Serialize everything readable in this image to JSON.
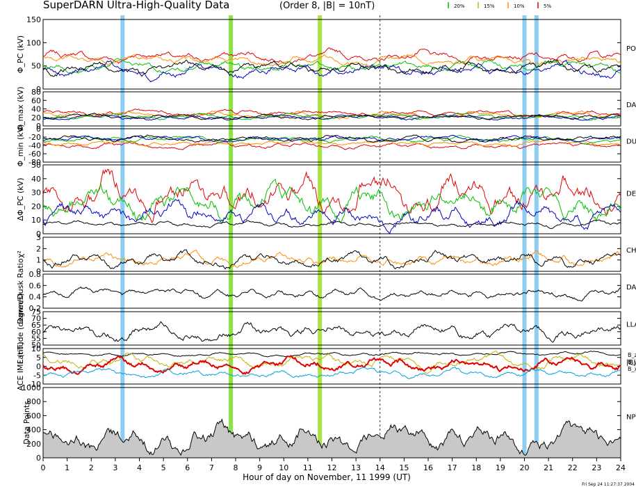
{
  "chart_data": {
    "type": "line",
    "title": "SuperDARN Ultra-High-Quality Data",
    "subtitle": "(Order 8, |B| = 10nT)",
    "legend": [
      {
        "label": "20%",
        "color": "#00c000"
      },
      {
        "label": "15%",
        "color": "#d0b000"
      },
      {
        "label": "10%",
        "color": "#ff8c00"
      },
      {
        "label": "5%",
        "color": "#e00000"
      }
    ],
    "xlabel": "Hour of day on November, 11 1999 (UT)",
    "xlim": [
      0,
      24
    ],
    "xticks": [
      "0",
      "1",
      "2",
      "3",
      "4",
      "5",
      "6",
      "7",
      "8",
      "9",
      "10",
      "11",
      "12",
      "13",
      "14",
      "15",
      "16",
      "17",
      "18",
      "19",
      "20",
      "21",
      "22",
      "23",
      "24"
    ],
    "timestamp": "Fri Sep 24 11:27:37 2004",
    "highlight_bands": [
      {
        "hour": 3.3,
        "color": "#80c8f0"
      },
      {
        "hour": 7.8,
        "color": "#80e030"
      },
      {
        "hour": 11.5,
        "color": "#a0e030"
      },
      {
        "hour": 20.0,
        "color": "#80c8f0"
      },
      {
        "hour": 20.5,
        "color": "#80c8f0"
      }
    ],
    "dashed_marker_hour": 14.0,
    "panels": [
      {
        "id": "phi-pc",
        "ylabel": "Φ_PC (kV)",
        "ylim": [
          0,
          150
        ],
        "yticks": [
          "0",
          "50",
          "100",
          "150"
        ],
        "side_label": "PO",
        "series": [
          {
            "color": "#e00000",
            "base": 70,
            "amp": 10
          },
          {
            "color": "#ff8c00",
            "base": 62,
            "amp": 9
          },
          {
            "color": "#00c000",
            "base": 48,
            "amp": 10
          },
          {
            "color": "#0000c0",
            "base": 42,
            "amp": 12
          },
          {
            "color": "#000000",
            "base": 45,
            "amp": 11
          }
        ]
      },
      {
        "id": "phi-max",
        "ylabel": "Φ_max (kV)",
        "ylim": [
          0,
          80
        ],
        "yticks": [
          "0",
          "20",
          "40",
          "60",
          "80"
        ],
        "side_label": "DAY",
        "series": [
          {
            "color": "#e00000",
            "base": 30,
            "amp": 6
          },
          {
            "color": "#ff8c00",
            "base": 26,
            "amp": 6
          },
          {
            "color": "#00c000",
            "base": 22,
            "amp": 5
          },
          {
            "color": "#0000c0",
            "base": 20,
            "amp": 5
          },
          {
            "color": "#000000",
            "base": 22,
            "amp": 5
          }
        ]
      },
      {
        "id": "phi-min",
        "ylabel": "Φ_min (kV)",
        "ylim": [
          -80,
          0
        ],
        "yticks": [
          "-80",
          "-60",
          "-40",
          "-20",
          "0"
        ],
        "side_label": "DU",
        "series": [
          {
            "color": "#e00000",
            "base": -40,
            "amp": 6
          },
          {
            "color": "#ff8c00",
            "base": -34,
            "amp": 5
          },
          {
            "color": "#00c000",
            "base": -25,
            "amp": 6
          },
          {
            "color": "#0000c0",
            "base": -24,
            "amp": 6
          },
          {
            "color": "#000000",
            "base": -24,
            "amp": 6
          }
        ]
      },
      {
        "id": "delta-phi",
        "ylabel": "ΔΦ_PC (kV)",
        "ylim": [
          0,
          50
        ],
        "yticks": [
          "0",
          "10",
          "20",
          "30",
          "40",
          "50"
        ],
        "side_label": "DE",
        "series": [
          {
            "color": "#e00000",
            "base": 30,
            "amp": 12
          },
          {
            "color": "#00c000",
            "base": 22,
            "amp": 10
          },
          {
            "color": "#0000c0",
            "base": 14,
            "amp": 7
          },
          {
            "color": "#000000",
            "base": 7,
            "amp": 2
          }
        ]
      },
      {
        "id": "chi2",
        "ylabel": "χ²",
        "ylim": [
          0,
          3
        ],
        "yticks": [
          "0",
          "1",
          "2",
          "3"
        ],
        "side_label": "CH",
        "series": [
          {
            "color": "#ff8c00",
            "base": 1.0,
            "amp": 0.5
          },
          {
            "color": "#000000",
            "base": 1.0,
            "amp": 0.55
          }
        ]
      },
      {
        "id": "dawn-dusk",
        "ylabel": "Dawn/Dusk Ratio",
        "ylim": [
          0.2,
          0.8
        ],
        "yticks": [
          "0.2",
          "0.4",
          "0.6",
          "0.8"
        ],
        "side_label": "DAY",
        "series": [
          {
            "color": "#000000",
            "base": 0.46,
            "amp": 0.08
          }
        ]
      },
      {
        "id": "latitude",
        "ylabel": "Latitude (degrees)",
        "ylim": [
          50,
          75
        ],
        "yticks": [
          "50",
          "55",
          "60",
          "65",
          "70",
          "75"
        ],
        "side_label": "LLA",
        "series": [
          {
            "color": "#000000",
            "base": 60,
            "amp": 5
          }
        ]
      },
      {
        "id": "imf",
        "ylabel": "ACE IMF (nT)",
        "ylim": [
          -10,
          10
        ],
        "yticks": [
          "-10",
          "-5",
          "0",
          "5",
          "10"
        ],
        "side_label": "|B|",
        "imf_labels": [
          {
            "label": "B_z",
            "color": "#e00000"
          },
          {
            "label": "B_y",
            "color": "#d0b000"
          },
          {
            "label": "B_x",
            "color": "#00a0e0"
          }
        ],
        "series": [
          {
            "color": "#000000",
            "base": 7,
            "amp": 1
          },
          {
            "color": "#c0b000",
            "base": 3,
            "amp": 3
          },
          {
            "color": "#e00000",
            "base": 1,
            "amp": 3
          },
          {
            "color": "#00a0e0",
            "base": -4,
            "amp": 2
          }
        ]
      },
      {
        "id": "data-points",
        "ylabel": "Data Points",
        "ylim": [
          0,
          1000
        ],
        "yticks": [
          "0",
          "200",
          "400",
          "600",
          "800",
          "1000"
        ],
        "side_label": "NP",
        "series": [
          {
            "color": "#000000",
            "base": 280,
            "amp": 160
          }
        ]
      }
    ]
  }
}
